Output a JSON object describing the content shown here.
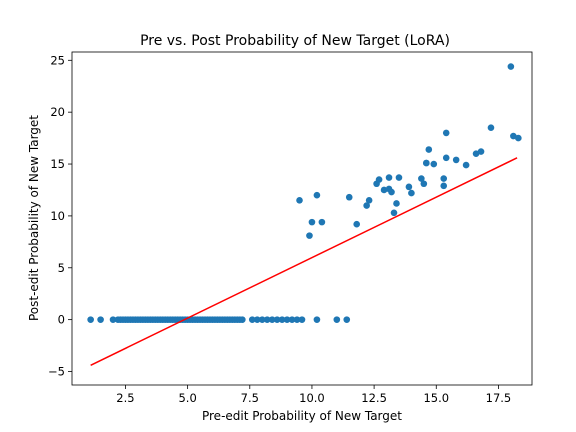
{
  "chart_data": {
    "type": "scatter",
    "title": "Pre vs. Post Probability of New Target (LoRA)",
    "xlabel": "Pre-edit Probability of New Target",
    "ylabel": "Post-edit Probability of New Target",
    "xlim": [
      0.35,
      18.85
    ],
    "ylim": [
      -6.3,
      25.8
    ],
    "xticks": [
      2.5,
      5.0,
      7.5,
      10.0,
      12.5,
      15.0,
      17.5
    ],
    "xtick_labels": [
      "2.5",
      "5.0",
      "7.5",
      "10.0",
      "12.5",
      "15.0",
      "17.5"
    ],
    "yticks": [
      -5,
      0,
      5,
      10,
      15,
      20,
      25
    ],
    "ytick_labels": [
      "−5",
      "0",
      "5",
      "10",
      "15",
      "20",
      "25"
    ],
    "grid": false,
    "colors": {
      "points": "#1f77b4",
      "fit_line": "#ff0000"
    },
    "series": [
      {
        "type": "scatter",
        "x": [
          1.1,
          1.5,
          2.0,
          2.2,
          2.3,
          2.4,
          2.5,
          2.6,
          2.7,
          2.8,
          2.9,
          3.0,
          3.1,
          3.2,
          3.3,
          3.4,
          3.5,
          3.6,
          3.7,
          3.8,
          3.9,
          4.0,
          4.1,
          4.2,
          4.3,
          4.4,
          4.5,
          4.6,
          4.7,
          4.8,
          4.9,
          5.0,
          5.1,
          5.2,
          5.3,
          5.4,
          5.5,
          5.6,
          5.7,
          5.8,
          5.9,
          6.0,
          6.1,
          6.2,
          6.3,
          6.4,
          6.5,
          6.6,
          6.7,
          6.8,
          6.9,
          7.0,
          7.1,
          7.2,
          7.6,
          7.8,
          8.0,
          8.2,
          8.4,
          8.6,
          8.8,
          9.0,
          9.2,
          9.4,
          9.6,
          10.2,
          11.0,
          11.4,
          9.5,
          10.2,
          10.0,
          10.4,
          9.9,
          11.5,
          11.8,
          12.2,
          12.3,
          12.6,
          12.7,
          12.9,
          13.1,
          13.1,
          13.2,
          13.3,
          13.5,
          13.4,
          13.9,
          14.0,
          14.4,
          14.5,
          14.6,
          14.6,
          14.7,
          14.9,
          15.3,
          15.3,
          15.4,
          15.4,
          15.8,
          16.2,
          16.6,
          16.8,
          17.2,
          18.0,
          18.1,
          18.3
        ],
        "y": [
          0,
          0,
          0,
          0,
          0,
          0,
          0,
          0,
          0,
          0,
          0,
          0,
          0,
          0,
          0,
          0,
          0,
          0,
          0,
          0,
          0,
          0,
          0,
          0,
          0,
          0,
          0,
          0,
          0,
          0,
          0,
          0,
          0,
          0,
          0,
          0,
          0,
          0,
          0,
          0,
          0,
          0,
          0,
          0,
          0,
          0,
          0,
          0,
          0,
          0,
          0,
          0,
          0,
          0,
          0,
          0,
          0,
          0,
          0,
          0,
          0,
          0,
          0,
          0,
          0,
          0,
          0,
          0,
          11.5,
          12.0,
          9.4,
          9.4,
          8.1,
          11.8,
          9.2,
          11.0,
          11.5,
          13.1,
          13.5,
          12.5,
          12.6,
          13.7,
          12.3,
          10.3,
          13.7,
          11.2,
          12.8,
          12.2,
          13.6,
          13.1,
          15.1,
          15.1,
          16.4,
          15.0,
          13.6,
          12.9,
          18.0,
          15.6,
          15.4,
          14.9,
          16.0,
          16.2,
          18.5,
          24.4,
          17.7,
          17.5
        ]
      },
      {
        "type": "line",
        "x": [
          1.1,
          18.25
        ],
        "y": [
          -4.4,
          15.6
        ]
      }
    ]
  }
}
